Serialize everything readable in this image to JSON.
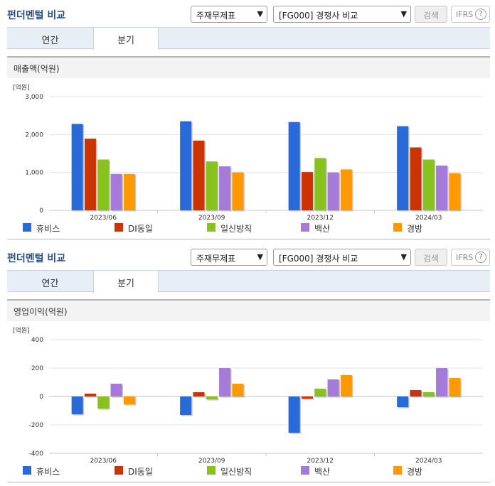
{
  "series_colors": [
    "#2a6ad8",
    "#cc3300",
    "#88c21d",
    "#a57ad8",
    "#ff9900"
  ],
  "panels": [
    {
      "title": "펀더멘털 비교",
      "select1": "주재무제표",
      "select2": "[FG000] 경쟁사 비교",
      "search_label": "검색",
      "ifrs_label": "IFRS",
      "help_label": "?",
      "tabs": [
        "연간",
        "분기"
      ],
      "chart_title": "매출액(억원)"
    },
    {
      "title": "펀더멘털 비교",
      "select1": "주재무제표",
      "select2": "[FG000] 경쟁사 비교",
      "search_label": "검색",
      "ifrs_label": "IFRS",
      "help_label": "?",
      "tabs": [
        "연간",
        "분기"
      ],
      "chart_title": "영업이익(억원)"
    }
  ],
  "chart_data": [
    {
      "type": "bar",
      "title": "매출액(억원)",
      "unit": "[억원]",
      "categories": [
        "2023/06",
        "2023/09",
        "2023/12",
        "2024/03"
      ],
      "ylim": [
        0,
        3000
      ],
      "yticks": [
        0,
        1000,
        2000,
        3000
      ],
      "ytick_labels": [
        "0",
        "1,000",
        "2,000",
        "3,000"
      ],
      "grid": true,
      "legend": "bottom",
      "series": [
        {
          "name": "휴비스",
          "values": [
            2280,
            2350,
            2330,
            2220
          ]
        },
        {
          "name": "DI동일",
          "values": [
            1890,
            1840,
            1010,
            1660
          ]
        },
        {
          "name": "일신방직",
          "values": [
            1340,
            1290,
            1380,
            1340
          ]
        },
        {
          "name": "백산",
          "values": [
            960,
            1160,
            1000,
            1180
          ]
        },
        {
          "name": "경방",
          "values": [
            960,
            1000,
            1080,
            980
          ]
        }
      ]
    },
    {
      "type": "bar",
      "title": "영업이익(억원)",
      "unit": "[억원]",
      "categories": [
        "2023/06",
        "2023/09",
        "2023/12",
        "2024/03"
      ],
      "ylim": [
        -400,
        400
      ],
      "yticks": [
        -400,
        -200,
        0,
        200,
        400
      ],
      "ytick_labels": [
        "-400",
        "-200",
        "0",
        "200",
        "400"
      ],
      "grid": true,
      "legend": "bottom",
      "series": [
        {
          "name": "휴비스",
          "values": [
            -125,
            -130,
            -255,
            -75
          ]
        },
        {
          "name": "DI동일",
          "values": [
            20,
            30,
            -15,
            45
          ]
        },
        {
          "name": "일신방직",
          "values": [
            -85,
            -20,
            55,
            30
          ]
        },
        {
          "name": "백산",
          "values": [
            90,
            200,
            120,
            200
          ]
        },
        {
          "name": "경방",
          "values": [
            -55,
            90,
            150,
            130
          ]
        }
      ]
    }
  ]
}
